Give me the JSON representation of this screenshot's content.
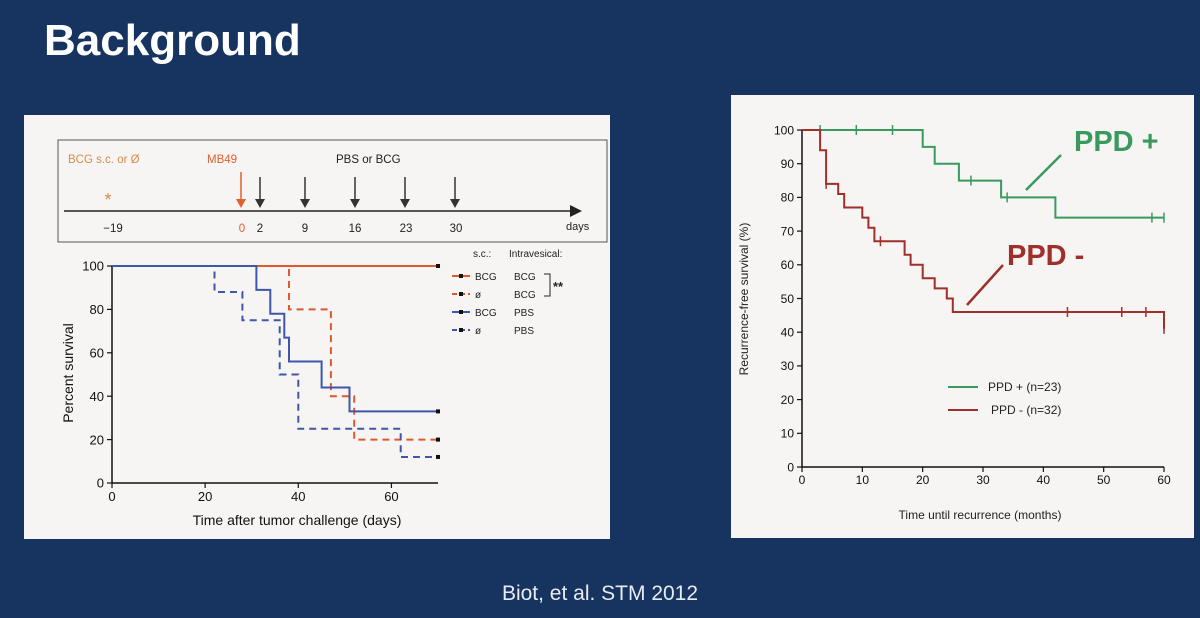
{
  "slide": {
    "title": "Background",
    "citation": "Biot, et al. STM 2012",
    "background_color": "#17335f"
  },
  "timeline": {
    "bcg_label": "BCG s.c. or Ø",
    "mb49_label": "MB49",
    "treat_label": "PBS or BCG",
    "days_label": "days",
    "star": "*",
    "ticks": [
      "−19",
      "0",
      "2",
      "9",
      "16",
      "23",
      "30"
    ],
    "bcg_color": "#d98a4c",
    "mb49_color": "#e0602f"
  },
  "chart_data": [
    {
      "type": "line",
      "step": true,
      "xlabel": "Time after tumor challenge (days)",
      "ylabel": "Percent survival",
      "xlim": [
        0,
        70
      ],
      "ylim": [
        0,
        100
      ],
      "xticks": [
        "0",
        "20",
        "40",
        "60"
      ],
      "yticks": [
        "0",
        "20",
        "40",
        "60",
        "80",
        "100"
      ],
      "legend_header": [
        "s.c.:",
        "Intravesical:"
      ],
      "significance": "**",
      "legend_position": "top-right",
      "series": [
        {
          "name": "BCG",
          "intravesical": "BCG",
          "color": "#dd5a2e",
          "dash": false,
          "points": [
            [
              0,
              100
            ],
            [
              70,
              100
            ]
          ],
          "censor": [
            [
              70,
              100
            ]
          ]
        },
        {
          "name": "ø",
          "intravesical": "BCG",
          "color": "#dd5a2e",
          "dash": true,
          "points": [
            [
              0,
              100
            ],
            [
              38,
              100
            ],
            [
              38,
              80
            ],
            [
              47,
              80
            ],
            [
              47,
              40
            ],
            [
              52,
              40
            ],
            [
              52,
              20
            ],
            [
              70,
              20
            ]
          ],
          "censor": [
            [
              70,
              20
            ]
          ]
        },
        {
          "name": "BCG",
          "intravesical": "PBS",
          "color": "#3e57a8",
          "dash": false,
          "points": [
            [
              0,
              100
            ],
            [
              31,
              100
            ],
            [
              31,
              89
            ],
            [
              34,
              89
            ],
            [
              34,
              78
            ],
            [
              37,
              78
            ],
            [
              37,
              67
            ],
            [
              38,
              67
            ],
            [
              38,
              56
            ],
            [
              45,
              56
            ],
            [
              45,
              44
            ],
            [
              51,
              44
            ],
            [
              51,
              33
            ],
            [
              70,
              33
            ]
          ],
          "censor": [
            [
              70,
              33
            ]
          ]
        },
        {
          "name": "ø",
          "intravesical": "PBS",
          "color": "#3e57a8",
          "dash": true,
          "points": [
            [
              0,
              100
            ],
            [
              22,
              100
            ],
            [
              22,
              88
            ],
            [
              28,
              88
            ],
            [
              28,
              75
            ],
            [
              36,
              75
            ],
            [
              36,
              50
            ],
            [
              40,
              50
            ],
            [
              40,
              25
            ],
            [
              62,
              25
            ],
            [
              62,
              12
            ],
            [
              70,
              12
            ]
          ],
          "censor": [
            [
              70,
              12
            ]
          ]
        }
      ]
    },
    {
      "type": "line",
      "step": true,
      "xlabel": "Time until recurrence (months)",
      "ylabel": "Recurrence-free survival (%)",
      "xlim": [
        0,
        60
      ],
      "ylim": [
        0,
        100
      ],
      "xticks": [
        "0",
        "10",
        "20",
        "30",
        "40",
        "50",
        "60"
      ],
      "yticks": [
        "0",
        "10",
        "20",
        "30",
        "40",
        "50",
        "60",
        "70",
        "80",
        "90",
        "100"
      ],
      "legend_position": "bottom-right",
      "series": [
        {
          "name": "PPD + (n=23)",
          "annotation": "PPD +",
          "color": "#3a9a5e",
          "points": [
            [
              0,
              100
            ],
            [
              20,
              100
            ],
            [
              20,
              95
            ],
            [
              22,
              95
            ],
            [
              22,
              90
            ],
            [
              26,
              90
            ],
            [
              26,
              85
            ],
            [
              33,
              85
            ],
            [
              33,
              80
            ],
            [
              42,
              80
            ],
            [
              42,
              74
            ],
            [
              60,
              74
            ]
          ],
          "censor": [
            [
              3,
              100
            ],
            [
              9,
              100
            ],
            [
              15,
              100
            ],
            [
              28,
              85
            ],
            [
              34,
              80
            ],
            [
              58,
              74
            ],
            [
              60,
              74
            ]
          ]
        },
        {
          "name": "PPD - (n=32)",
          "annotation": "PPD -",
          "color": "#9e2f2a",
          "points": [
            [
              0,
              100
            ],
            [
              3,
              100
            ],
            [
              3,
              94
            ],
            [
              4,
              94
            ],
            [
              4,
              84
            ],
            [
              6,
              84
            ],
            [
              6,
              81
            ],
            [
              7,
              81
            ],
            [
              7,
              77
            ],
            [
              10,
              77
            ],
            [
              10,
              74
            ],
            [
              11,
              74
            ],
            [
              11,
              71
            ],
            [
              12,
              71
            ],
            [
              12,
              67
            ],
            [
              17,
              67
            ],
            [
              17,
              63
            ],
            [
              18,
              63
            ],
            [
              18,
              60
            ],
            [
              20,
              60
            ],
            [
              20,
              56
            ],
            [
              22,
              56
            ],
            [
              22,
              53
            ],
            [
              24,
              53
            ],
            [
              24,
              50
            ],
            [
              25,
              50
            ],
            [
              25,
              46
            ],
            [
              60,
              46
            ],
            [
              60,
              41
            ]
          ],
          "censor": [
            [
              4,
              84
            ],
            [
              13,
              67
            ],
            [
              44,
              46
            ],
            [
              53,
              46
            ],
            [
              57,
              46
            ],
            [
              60,
              41
            ]
          ]
        }
      ]
    }
  ]
}
